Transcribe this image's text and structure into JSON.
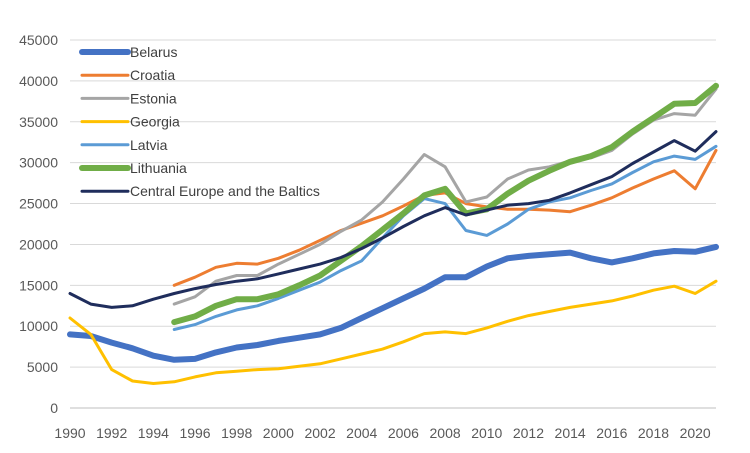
{
  "chart_data": {
    "type": "line",
    "title": "",
    "xlabel": "",
    "ylabel": "",
    "ylim": [
      0,
      45000
    ],
    "yticks": [
      0,
      5000,
      10000,
      15000,
      20000,
      25000,
      30000,
      35000,
      40000,
      45000
    ],
    "xlim": [
      1990,
      2021
    ],
    "xticks": [
      1990,
      1992,
      1994,
      1996,
      1998,
      2000,
      2002,
      2004,
      2006,
      2008,
      2010,
      2012,
      2014,
      2016,
      2018,
      2020
    ],
    "grid": true,
    "legend_position": "top-left",
    "series": [
      {
        "name": "Belarus",
        "color": "#4472C4",
        "width": 6,
        "x": [
          1990,
          1991,
          1992,
          1993,
          1994,
          1995,
          1996,
          1997,
          1998,
          1999,
          2000,
          2001,
          2002,
          2003,
          2004,
          2005,
          2006,
          2007,
          2008,
          2009,
          2010,
          2011,
          2012,
          2013,
          2014,
          2015,
          2016,
          2017,
          2018,
          2019,
          2020,
          2021
        ],
        "values": [
          9000,
          8800,
          8000,
          7300,
          6400,
          5900,
          6000,
          6800,
          7400,
          7700,
          8200,
          8600,
          9000,
          9800,
          11000,
          12200,
          13400,
          14600,
          16000,
          16000,
          17300,
          18300,
          18600,
          18800,
          19000,
          18300,
          17800,
          18300,
          18900,
          19200,
          19100,
          19700
        ]
      },
      {
        "name": "Croatia",
        "color": "#ED7D31",
        "width": 3,
        "x": [
          1995,
          1996,
          1997,
          1998,
          1999,
          2000,
          2001,
          2002,
          2003,
          2004,
          2005,
          2006,
          2007,
          2008,
          2009,
          2010,
          2011,
          2012,
          2013,
          2014,
          2015,
          2016,
          2017,
          2018,
          2019,
          2020,
          2021
        ],
        "values": [
          15000,
          16000,
          17200,
          17700,
          17600,
          18300,
          19300,
          20500,
          21700,
          22600,
          23500,
          24700,
          26000,
          26300,
          25000,
          24600,
          24300,
          24300,
          24200,
          24000,
          24800,
          25700,
          26900,
          28000,
          29000,
          26800,
          31500
        ]
      },
      {
        "name": "Estonia",
        "color": "#A5A5A5",
        "width": 3,
        "x": [
          1995,
          1996,
          1997,
          1998,
          1999,
          2000,
          2001,
          2002,
          2003,
          2004,
          2005,
          2006,
          2007,
          2008,
          2009,
          2010,
          2011,
          2012,
          2013,
          2014,
          2015,
          2016,
          2017,
          2018,
          2019,
          2020,
          2021
        ],
        "values": [
          12700,
          13600,
          15500,
          16200,
          16200,
          17600,
          18800,
          20000,
          21600,
          23000,
          25200,
          28000,
          31000,
          29500,
          25200,
          25800,
          28000,
          29100,
          29500,
          30200,
          30600,
          31500,
          33500,
          35200,
          36000,
          35800,
          39000
        ]
      },
      {
        "name": "Georgia",
        "color": "#FFC000",
        "width": 3,
        "x": [
          1990,
          1991,
          1992,
          1993,
          1994,
          1995,
          1996,
          1997,
          1998,
          1999,
          2000,
          2001,
          2002,
          2003,
          2004,
          2005,
          2006,
          2007,
          2008,
          2009,
          2010,
          2011,
          2012,
          2013,
          2014,
          2015,
          2016,
          2017,
          2018,
          2019,
          2020,
          2021
        ],
        "values": [
          11000,
          9000,
          4700,
          3300,
          3000,
          3200,
          3800,
          4300,
          4500,
          4700,
          4800,
          5100,
          5400,
          6000,
          6600,
          7200,
          8100,
          9100,
          9300,
          9100,
          9800,
          10600,
          11300,
          11800,
          12300,
          12700,
          13100,
          13700,
          14400,
          14900,
          14000,
          15500
        ]
      },
      {
        "name": "Latvia",
        "color": "#5B9BD5",
        "width": 3,
        "x": [
          1995,
          1996,
          1997,
          1998,
          1999,
          2000,
          2001,
          2002,
          2003,
          2004,
          2005,
          2006,
          2007,
          2008,
          2009,
          2010,
          2011,
          2012,
          2013,
          2014,
          2015,
          2016,
          2017,
          2018,
          2019,
          2020,
          2021
        ],
        "values": [
          9600,
          10200,
          11200,
          12000,
          12500,
          13400,
          14400,
          15400,
          16800,
          18000,
          20800,
          23500,
          25600,
          25000,
          21700,
          21100,
          22500,
          24300,
          25200,
          25700,
          26600,
          27400,
          28800,
          30100,
          30800,
          30400,
          32000
        ]
      },
      {
        "name": "Lithuania",
        "color": "#70AD47",
        "width": 6,
        "x": [
          1995,
          1996,
          1997,
          1998,
          1999,
          2000,
          2001,
          2002,
          2003,
          2004,
          2005,
          2006,
          2007,
          2008,
          2009,
          2010,
          2011,
          2012,
          2013,
          2014,
          2015,
          2016,
          2017,
          2018,
          2019,
          2020,
          2021
        ],
        "values": [
          10500,
          11200,
          12500,
          13300,
          13300,
          13900,
          15000,
          16200,
          18000,
          19800,
          21800,
          23800,
          26000,
          26800,
          23800,
          24300,
          26200,
          27800,
          29000,
          30100,
          30800,
          31900,
          33800,
          35500,
          37200,
          37300,
          39400
        ]
      },
      {
        "name": "Central Europe and the Baltics",
        "color": "#1F2D5C",
        "width": 3,
        "x": [
          1990,
          1991,
          1992,
          1993,
          1994,
          1995,
          1996,
          1997,
          1998,
          1999,
          2000,
          2001,
          2002,
          2003,
          2004,
          2005,
          2006,
          2007,
          2008,
          2009,
          2010,
          2011,
          2012,
          2013,
          2014,
          2015,
          2016,
          2017,
          2018,
          2019,
          2020,
          2021
        ],
        "values": [
          14000,
          12700,
          12300,
          12500,
          13300,
          14000,
          14600,
          15100,
          15500,
          15800,
          16400,
          17000,
          17600,
          18400,
          19500,
          20800,
          22200,
          23500,
          24500,
          23600,
          24200,
          24800,
          25000,
          25400,
          26300,
          27300,
          28300,
          29900,
          31300,
          32700,
          31400,
          33800
        ]
      }
    ]
  }
}
